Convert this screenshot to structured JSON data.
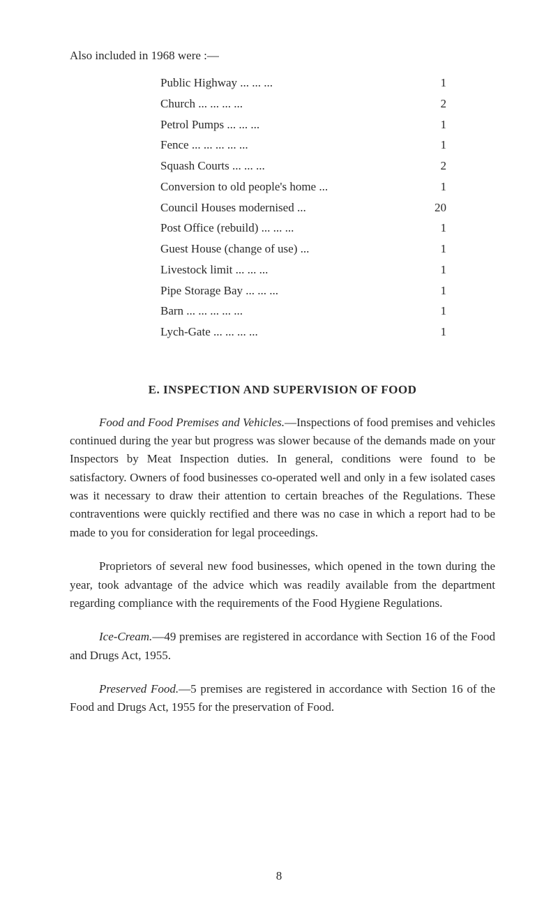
{
  "intro": "Also included in 1968 were :—",
  "tableRows": [
    {
      "label": "Public Highway       ...       ...       ...",
      "value": "1"
    },
    {
      "label": "Church           ...       ...       ...       ...",
      "value": "2"
    },
    {
      "label": "Petrol Pumps         ...       ...       ...",
      "value": "1"
    },
    {
      "label": "Fence ...       ...       ...       ...       ...",
      "value": "1"
    },
    {
      "label": "Squash Courts        ...       ...       ...",
      "value": "2"
    },
    {
      "label": "Conversion to old people's home   ...",
      "value": "1"
    },
    {
      "label": "Council Houses modernised          ...",
      "value": "20"
    },
    {
      "label": "Post Office (rebuild) ...      ...       ...",
      "value": "1"
    },
    {
      "label": "Guest House (change of use)        ...",
      "value": "1"
    },
    {
      "label": "Livestock limit        ...       ...       ...",
      "value": "1"
    },
    {
      "label": "Pipe Storage Bay     ...       ...       ...",
      "value": "1"
    },
    {
      "label": "Barn   ...       ...       ...       ...       ...",
      "value": "1"
    },
    {
      "label": "Lych-Gate      ...       ...       ...       ...",
      "value": "1"
    }
  ],
  "sectionHeading": "E.   INSPECTION AND SUPERVISION OF FOOD",
  "paragraphs": {
    "p1": {
      "leadItalic": "Food and Food Premises and Vehicles.",
      "rest": "—Inspections of food premises and vehicles continued during the year but progress was slower because of the demands made on your Inspectors by Meat Inspection duties. In general, conditions were found to be satisfactory. Owners of food businesses co-operated well and only in a few isolated cases was it necessary to draw their attention to certain breaches of the Regulations. These contraventions were quickly rectified and there was no case in which a report had to be made to you for consideration for legal proceedings."
    },
    "p2": {
      "rest": "Proprietors of several new food businesses, which opened in the town during the year, took advantage of the advice which was readily available from the department regarding compliance with the requirements of the Food Hygiene Regulations."
    },
    "p3": {
      "leadItalic": "Ice-Cream.",
      "rest": "—49 premises are registered in accordance with Section 16 of the Food and Drugs Act, 1955."
    },
    "p4": {
      "leadItalic": "Preserved Food.",
      "rest": "—5 premises are registered in accordance with Section 16 of the Food and Drugs Act, 1955 for the preservation of Food."
    }
  },
  "pageNumber": "8"
}
